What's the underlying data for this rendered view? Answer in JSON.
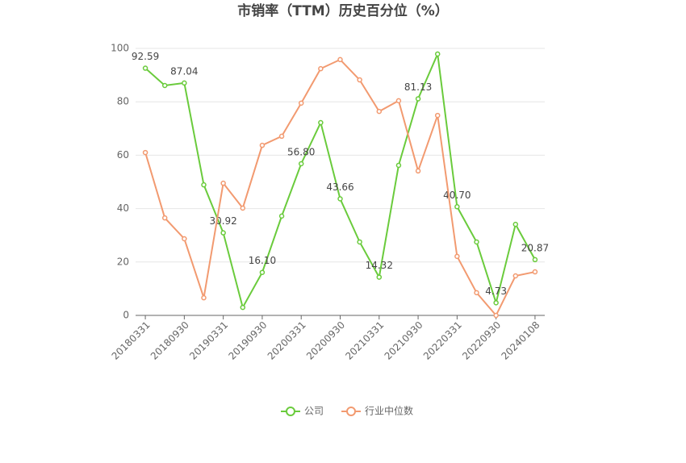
{
  "chart_data": {
    "type": "line",
    "title": "市销率（TTM）历史百分位（%）",
    "categories": [
      "20180331",
      null,
      "20180930",
      null,
      "20190331",
      null,
      "20190930",
      null,
      "20200331",
      null,
      "20200930",
      null,
      "20210331",
      null,
      "20210930",
      null,
      "20220331",
      null,
      "20220930",
      null,
      "20240108"
    ],
    "series": [
      {
        "name": "公司",
        "color": "#6acb3c",
        "values": [
          92.59,
          86.1,
          87.04,
          48.9,
          30.92,
          3.0,
          16.1,
          37.2,
          56.8,
          72.2,
          43.66,
          27.5,
          14.32,
          56.2,
          81.13,
          97.9,
          40.7,
          27.5,
          4.73,
          34.1,
          20.87
        ],
        "value_labels": [
          "92.59",
          null,
          "87.04",
          null,
          "30.92",
          null,
          "16.10",
          null,
          "56.80",
          null,
          "43.66",
          null,
          "14.32",
          null,
          "81.13",
          null,
          "40.70",
          null,
          "4.73",
          null,
          "20.87"
        ]
      },
      {
        "name": "行业中位数",
        "color": "#f29a70",
        "values": [
          61.0,
          36.5,
          28.7,
          6.6,
          49.5,
          40.2,
          63.7,
          67.1,
          79.5,
          92.4,
          95.8,
          88.2,
          76.4,
          80.4,
          54.1,
          74.9,
          22.1,
          8.5,
          0,
          14.8,
          16.3
        ]
      }
    ],
    "ylim": [
      0,
      100
    ],
    "yticks": [
      0,
      20,
      40,
      60,
      80,
      100
    ],
    "grid": true
  }
}
